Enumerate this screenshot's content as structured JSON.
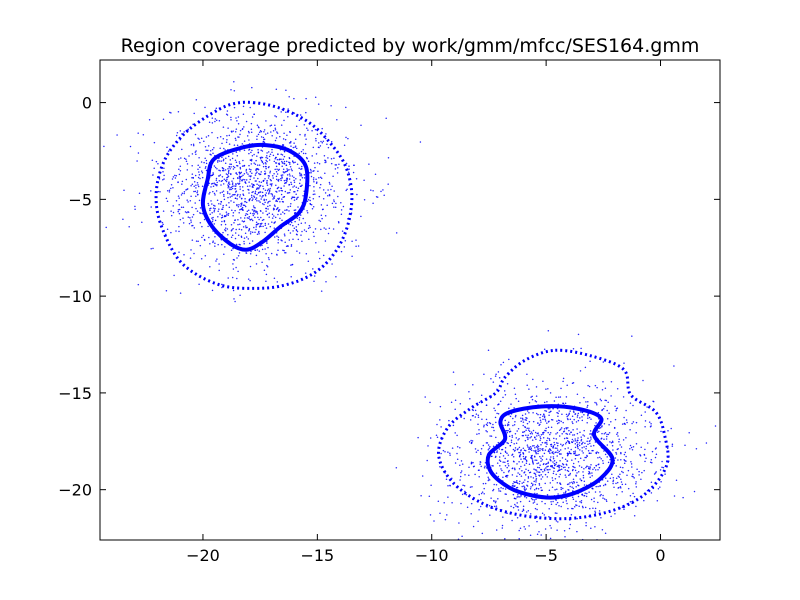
{
  "chart_data": {
    "type": "scatter",
    "title": "Region coverage predicted by work/gmm/mfcc/SES164.gmm",
    "xlabel": "",
    "ylabel": "",
    "xlim": [
      -24.5,
      2.6
    ],
    "ylim": [
      -22.6,
      2.2
    ],
    "x_ticks": [
      -20,
      -15,
      -10,
      -5,
      0
    ],
    "y_ticks": [
      0,
      -5,
      -10,
      -15,
      -20
    ],
    "x_tick_labels": [
      "−20",
      "−15",
      "−10",
      "−5",
      "0"
    ],
    "y_tick_labels": [
      "0",
      "−5",
      "−10",
      "−15",
      "−20"
    ],
    "grid": false,
    "legend": false,
    "colors": {
      "points": "#0000ff",
      "contours": "#0000ff",
      "axes": "#000000",
      "background": "#ffffff"
    },
    "clusters": [
      {
        "center": [
          -17.8,
          -4.6
        ],
        "spread": [
          2.05,
          2.0
        ],
        "inner_contour": [
          [
            -18.2,
            -2.3
          ],
          [
            -17.2,
            -2.2
          ],
          [
            -16.2,
            -2.5
          ],
          [
            -15.5,
            -3.3
          ],
          [
            -15.5,
            -4.8
          ],
          [
            -15.8,
            -5.7
          ],
          [
            -16.6,
            -6.4
          ],
          [
            -17.4,
            -7.2
          ],
          [
            -18.1,
            -7.6
          ],
          [
            -18.8,
            -7.3
          ],
          [
            -19.6,
            -6.4
          ],
          [
            -20.0,
            -5.3
          ],
          [
            -19.8,
            -4.0
          ],
          [
            -19.5,
            -2.9
          ]
        ],
        "outer_contour": [
          [
            -17.8,
            0.0
          ],
          [
            -16.6,
            -0.3
          ],
          [
            -15.4,
            -1.0
          ],
          [
            -14.5,
            -2.0
          ],
          [
            -13.8,
            -3.2
          ],
          [
            -13.5,
            -4.6
          ],
          [
            -13.6,
            -6.0
          ],
          [
            -14.0,
            -7.3
          ],
          [
            -14.7,
            -8.4
          ],
          [
            -15.6,
            -9.1
          ],
          [
            -16.7,
            -9.5
          ],
          [
            -17.8,
            -9.6
          ],
          [
            -19.0,
            -9.5
          ],
          [
            -20.1,
            -9.0
          ],
          [
            -21.0,
            -8.2
          ],
          [
            -21.6,
            -7.0
          ],
          [
            -22.0,
            -5.6
          ],
          [
            -22.0,
            -4.2
          ],
          [
            -21.6,
            -2.8
          ],
          [
            -20.8,
            -1.6
          ],
          [
            -19.8,
            -0.7
          ],
          [
            -18.8,
            -0.1
          ]
        ]
      },
      {
        "center": [
          -4.8,
          -18.2
        ],
        "spread": [
          2.2,
          1.9
        ],
        "inner_contour": [
          [
            -6.6,
            -16.0
          ],
          [
            -5.2,
            -15.7
          ],
          [
            -3.7,
            -15.8
          ],
          [
            -2.6,
            -16.3
          ],
          [
            -2.9,
            -17.2
          ],
          [
            -2.1,
            -18.4
          ],
          [
            -2.6,
            -19.4
          ],
          [
            -3.6,
            -20.1
          ],
          [
            -4.6,
            -20.4
          ],
          [
            -5.6,
            -20.3
          ],
          [
            -6.6,
            -19.9
          ],
          [
            -7.4,
            -19.1
          ],
          [
            -7.5,
            -18.2
          ],
          [
            -6.8,
            -17.4
          ],
          [
            -7.0,
            -16.5
          ]
        ],
        "outer_contour": [
          [
            -4.6,
            -12.8
          ],
          [
            -3.0,
            -13.1
          ],
          [
            -1.6,
            -13.8
          ],
          [
            -1.3,
            -15.1
          ],
          [
            -0.2,
            -16.0
          ],
          [
            0.2,
            -17.3
          ],
          [
            0.3,
            -18.6
          ],
          [
            -0.3,
            -19.8
          ],
          [
            -1.3,
            -20.7
          ],
          [
            -2.8,
            -21.3
          ],
          [
            -4.4,
            -21.5
          ],
          [
            -6.2,
            -21.3
          ],
          [
            -7.8,
            -20.7
          ],
          [
            -9.1,
            -19.6
          ],
          [
            -9.7,
            -18.2
          ],
          [
            -9.3,
            -16.8
          ],
          [
            -8.3,
            -15.8
          ],
          [
            -7.2,
            -15.0
          ],
          [
            -6.8,
            -14.2
          ],
          [
            -5.9,
            -13.3
          ]
        ]
      }
    ]
  }
}
